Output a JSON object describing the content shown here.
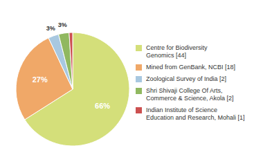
{
  "chart_data": {
    "type": "pie",
    "categories": [
      "Centre for Biodiversity\nGenomics [44]",
      "Mined from GenBank, NCBI [18]",
      "Zoological Survey of India [2]",
      "Shri Shivaji College Of Arts,\nCommerce & Science, Akola [2]",
      "Indian Institute of Science\nEducation and Research, Mohali [1]"
    ],
    "values": [
      66,
      27,
      3,
      3,
      1
    ],
    "value_labels": [
      "66%",
      "27%",
      "3%",
      "3%",
      null
    ],
    "colors": [
      "#d4df7a",
      "#f0a868",
      "#a8c8e0",
      "#90b860",
      "#cc5050"
    ],
    "data_labels": true,
    "legend": "right"
  }
}
